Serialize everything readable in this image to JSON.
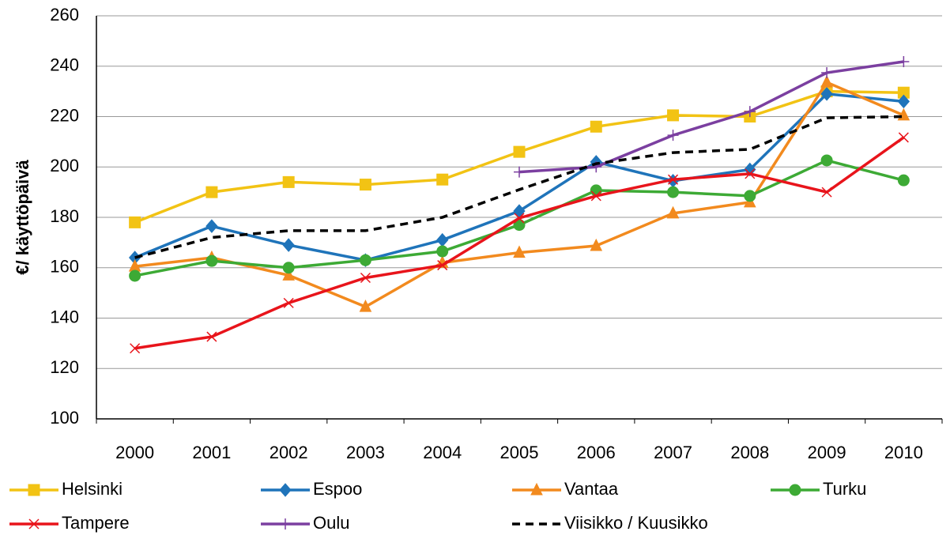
{
  "chart_data": {
    "type": "line",
    "y_label": "€/ käyttöpäivä",
    "categories": [
      "2000",
      "2001",
      "2002",
      "2003",
      "2004",
      "2005",
      "2006",
      "2007",
      "2008",
      "2009",
      "2010"
    ],
    "ylim": [
      100,
      260
    ],
    "yticks": [
      100,
      120,
      140,
      160,
      180,
      200,
      220,
      240,
      260
    ],
    "grid": true,
    "legend": "bottom",
    "series": [
      {
        "name": "Helsinki",
        "color": "#f2c314",
        "marker": "square",
        "values": [
          178,
          190,
          194,
          193,
          195,
          206,
          216,
          220.5,
          220,
          230,
          229.5
        ]
      },
      {
        "name": "Espoo",
        "color": "#1f74ba",
        "marker": "diamond",
        "values": [
          164,
          176.5,
          169,
          163,
          171,
          182.5,
          202,
          194.5,
          199,
          229,
          226
        ]
      },
      {
        "name": "Vantaa",
        "color": "#f28a1e",
        "marker": "triangle",
        "values": [
          160.5,
          164,
          157,
          144.5,
          162,
          166,
          168.7,
          181.6,
          186,
          233.6,
          220.5
        ]
      },
      {
        "name": "Turku",
        "color": "#3daa35",
        "marker": "circle",
        "values": [
          156.8,
          162.7,
          160,
          163,
          166.5,
          177,
          190.7,
          190,
          188.5,
          202.6,
          194.7
        ]
      },
      {
        "name": "Tampere",
        "color": "#e8141b",
        "marker": "x",
        "values": [
          128,
          132.6,
          146,
          156,
          161,
          179.7,
          188.5,
          195,
          197.3,
          190,
          211.7
        ]
      },
      {
        "name": "Oulu",
        "color": "#7b3fa0",
        "marker": "plus",
        "values": [
          null,
          null,
          null,
          null,
          null,
          198,
          200,
          212.6,
          222,
          237.4,
          241.8
        ]
      },
      {
        "name": "Viisikko / Kuusikko",
        "color": "#000000",
        "marker": "none",
        "dash": true,
        "values": [
          164,
          172,
          174.7,
          174.7,
          180,
          191,
          201.3,
          205.7,
          207,
          219.5,
          220
        ]
      }
    ]
  }
}
